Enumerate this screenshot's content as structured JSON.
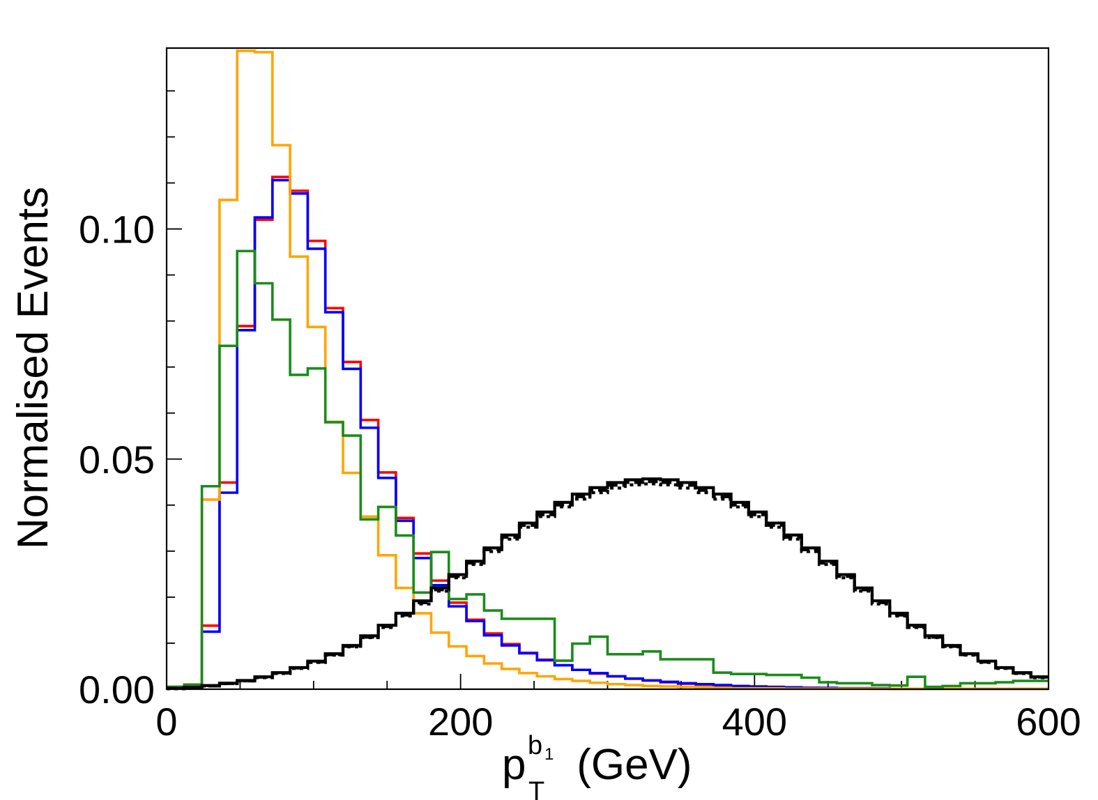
{
  "chart_data": {
    "type": "line",
    "histogram_style": "step",
    "xlabel": {
      "base": "p",
      "subscript": "T",
      "superscript": "b",
      "superscript_index": "1",
      "unit": " (GeV)"
    },
    "ylabel": "Normalised Events",
    "xlim": [
      0,
      600
    ],
    "ylim": [
      0,
      0.1393
    ],
    "x_ticks": [
      "0",
      "200",
      "400",
      "600"
    ],
    "x_tick_values": [
      0,
      200,
      400,
      600
    ],
    "y_ticks": [
      "0.00",
      "0.05",
      "0.10"
    ],
    "y_tick_values": [
      0,
      0.05,
      0.1
    ],
    "bin_width": 12,
    "bin_start": 0,
    "series": [
      {
        "name": "red",
        "color": "#ff0000",
        "dash": "",
        "values": [
          0.0005,
          0.001,
          0.0138,
          0.0449,
          0.0789,
          0.102,
          0.1113,
          0.1083,
          0.0974,
          0.0828,
          0.0711,
          0.0585,
          0.0471,
          0.0372,
          0.0295,
          0.0236,
          0.0188,
          0.0151,
          0.0121,
          0.0098,
          0.0079,
          0.0064,
          0.0052,
          0.0042,
          0.0034,
          0.0028,
          0.0023,
          0.0019,
          0.0015,
          0.0012,
          0.001,
          0.0008,
          0.0006,
          0.0005,
          0.0004,
          0.0003,
          0.0003,
          0.0002,
          0.0002,
          0.0002,
          0.0001,
          0.0001,
          0.0001,
          0.0001,
          0.0001,
          0.0001,
          0.0001,
          0.0001,
          0.0001,
          0.0001
        ]
      },
      {
        "name": "blue",
        "color": "#0000ff",
        "dash": "",
        "values": [
          0.0005,
          0.001,
          0.0125,
          0.0427,
          0.078,
          0.1025,
          0.1106,
          0.1077,
          0.0957,
          0.0819,
          0.0696,
          0.0568,
          0.0459,
          0.0366,
          0.0285,
          0.0226,
          0.018,
          0.0148,
          0.0117,
          0.0095,
          0.0078,
          0.0063,
          0.0052,
          0.0042,
          0.0035,
          0.0028,
          0.0023,
          0.0019,
          0.0016,
          0.0013,
          0.0011,
          0.0009,
          0.0007,
          0.0006,
          0.0005,
          0.0004,
          0.0003,
          0.0003,
          0.0002,
          0.0002,
          0.0002,
          0.0001,
          0.0001,
          0.0001,
          0.0001,
          0.0001,
          0.0001,
          0.0001,
          0.0001,
          0.0001
        ]
      },
      {
        "name": "orange",
        "color": "#ffa500",
        "dash": "",
        "values": [
          0.0005,
          0.001,
          0.0412,
          0.1063,
          0.1387,
          0.1384,
          0.1182,
          0.094,
          0.0787,
          0.0581,
          0.047,
          0.0375,
          0.0291,
          0.022,
          0.0165,
          0.0123,
          0.0093,
          0.0072,
          0.0056,
          0.0044,
          0.0035,
          0.0028,
          0.0022,
          0.0018,
          0.0014,
          0.0011,
          0.0009,
          0.0007,
          0.0006,
          0.0005,
          0.0004,
          0.0003,
          0.0002,
          0.0002,
          0.0002,
          0.0001,
          0.0001,
          0.0001,
          0.0001,
          0.0001,
          0.0001,
          0.0001,
          0.0001,
          0.0001,
          0.0001,
          0.0001,
          0.0001,
          0.0001,
          0.0001,
          0.0001
        ]
      },
      {
        "name": "green",
        "color": "#1a8c1a",
        "dash": "",
        "values": [
          0.0005,
          0.001,
          0.0441,
          0.0746,
          0.0952,
          0.0882,
          0.0803,
          0.0683,
          0.0697,
          0.058,
          0.0551,
          0.0369,
          0.0396,
          0.0334,
          0.021,
          0.0298,
          0.0196,
          0.0206,
          0.0171,
          0.0153,
          0.0153,
          0.0153,
          0.0062,
          0.0099,
          0.0114,
          0.0076,
          0.0076,
          0.0082,
          0.0065,
          0.0065,
          0.0065,
          0.0036,
          0.0033,
          0.0033,
          0.0031,
          0.0031,
          0.0025,
          0.0015,
          0.0013,
          0.0013,
          0.0009,
          0.0008,
          0.0027,
          0.0005,
          0.0007,
          0.0013,
          0.0013,
          0.0015,
          0.0018,
          0.0018
        ]
      },
      {
        "name": "black-solid",
        "color": "#000000",
        "dash": "",
        "values": [
          0.0002,
          0.0004,
          0.0008,
          0.0013,
          0.0019,
          0.0027,
          0.0036,
          0.0047,
          0.0061,
          0.0077,
          0.0095,
          0.0116,
          0.0139,
          0.0165,
          0.0192,
          0.022,
          0.0249,
          0.0278,
          0.0307,
          0.0335,
          0.0361,
          0.0385,
          0.0406,
          0.0424,
          0.0438,
          0.0449,
          0.0455,
          0.0457,
          0.0455,
          0.0449,
          0.0438,
          0.0424,
          0.0406,
          0.0385,
          0.0361,
          0.0335,
          0.0307,
          0.0278,
          0.0249,
          0.022,
          0.0192,
          0.0165,
          0.0139,
          0.0116,
          0.0095,
          0.0077,
          0.0061,
          0.0047,
          0.0036,
          0.0027
        ]
      },
      {
        "name": "black-dashed",
        "color": "#000000",
        "dash": "14,7",
        "values": [
          0.0002,
          0.0004,
          0.0007,
          0.0012,
          0.0018,
          0.0026,
          0.0035,
          0.0046,
          0.0059,
          0.0075,
          0.0093,
          0.0113,
          0.0136,
          0.0161,
          0.0188,
          0.0216,
          0.0245,
          0.0274,
          0.0303,
          0.033,
          0.0356,
          0.0379,
          0.04,
          0.0418,
          0.0432,
          0.0443,
          0.0449,
          0.0451,
          0.0449,
          0.0443,
          0.0432,
          0.0418,
          0.04,
          0.0379,
          0.0356,
          0.033,
          0.0303,
          0.0274,
          0.0245,
          0.0216,
          0.0188,
          0.0161,
          0.0136,
          0.0113,
          0.0093,
          0.0075,
          0.0059,
          0.0046,
          0.0035,
          0.0026
        ]
      },
      {
        "name": "black-dotted",
        "color": "#000000",
        "dash": "5,6",
        "values": [
          0.0001,
          0.0003,
          0.0007,
          0.0012,
          0.0018,
          0.0025,
          0.0034,
          0.0045,
          0.0058,
          0.0074,
          0.0092,
          0.0112,
          0.0134,
          0.0159,
          0.0185,
          0.0213,
          0.0242,
          0.0271,
          0.0299,
          0.0326,
          0.0352,
          0.0375,
          0.0396,
          0.0413,
          0.0427,
          0.0437,
          0.0444,
          0.0446,
          0.0444,
          0.0437,
          0.0427,
          0.0413,
          0.0396,
          0.0375,
          0.0352,
          0.0326,
          0.0299,
          0.0271,
          0.0242,
          0.0213,
          0.0185,
          0.0159,
          0.0134,
          0.0112,
          0.0092,
          0.0074,
          0.0058,
          0.0045,
          0.0034,
          0.0025
        ]
      }
    ]
  }
}
